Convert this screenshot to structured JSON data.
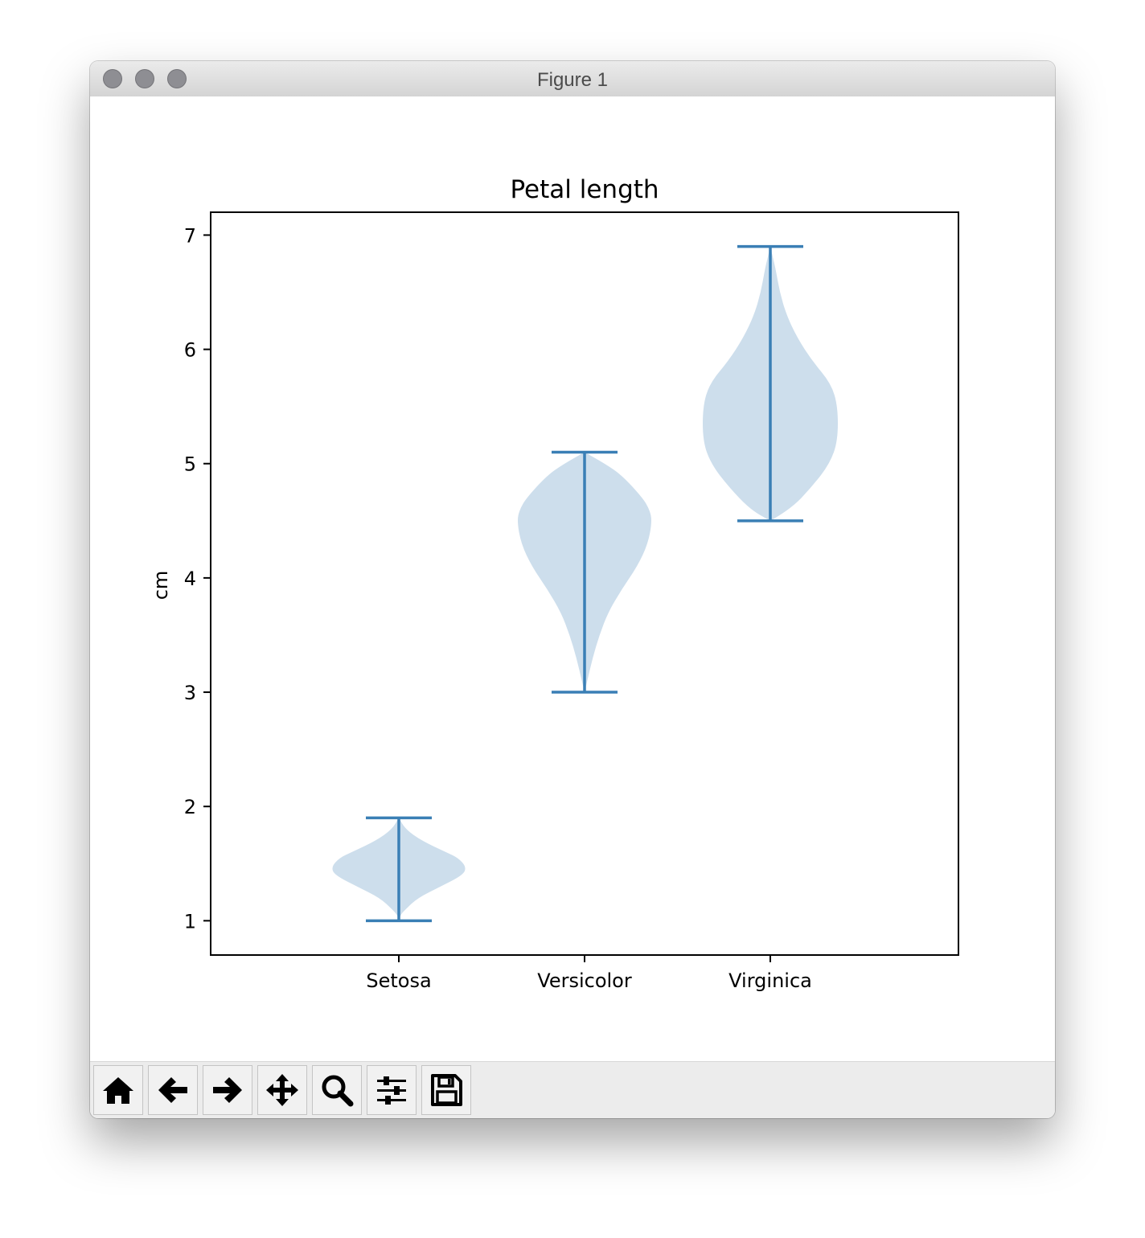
{
  "window": {
    "title": "Figure 1"
  },
  "toolbar": {
    "buttons": [
      {
        "name": "home-button",
        "icon": "home-icon"
      },
      {
        "name": "back-button",
        "icon": "arrow-left-icon"
      },
      {
        "name": "forward-button",
        "icon": "arrow-right-icon"
      },
      {
        "name": "pan-button",
        "icon": "move-icon"
      },
      {
        "name": "zoom-button",
        "icon": "search-icon"
      },
      {
        "name": "configure-subplots-button",
        "icon": "sliders-icon"
      },
      {
        "name": "save-button",
        "icon": "save-icon"
      }
    ]
  },
  "chart_data": {
    "type": "violin",
    "title": "Petal length",
    "ylabel": "cm",
    "xlabel": "",
    "categories": [
      "Setosa",
      "Versicolor",
      "Virginica"
    ],
    "ylim": [
      0.7,
      7.2
    ],
    "yticks": [
      1,
      2,
      3,
      4,
      5,
      6,
      7
    ],
    "grid": false,
    "colors": {
      "body": "#cddeec",
      "lines": "#3a7fb5"
    },
    "series": [
      {
        "min": 1.0,
        "max": 1.9,
        "density": [
          [
            1.0,
            0.0
          ],
          [
            1.05,
            0.02
          ],
          [
            1.1,
            0.1
          ],
          [
            1.2,
            0.28
          ],
          [
            1.3,
            0.62
          ],
          [
            1.4,
            0.95
          ],
          [
            1.47,
            1.0
          ],
          [
            1.55,
            0.88
          ],
          [
            1.6,
            0.7
          ],
          [
            1.7,
            0.34
          ],
          [
            1.8,
            0.1
          ],
          [
            1.9,
            0.0
          ]
        ]
      },
      {
        "min": 3.0,
        "max": 5.1,
        "density": [
          [
            3.0,
            0.0
          ],
          [
            3.1,
            0.04
          ],
          [
            3.3,
            0.12
          ],
          [
            3.5,
            0.22
          ],
          [
            3.7,
            0.35
          ],
          [
            3.9,
            0.55
          ],
          [
            4.1,
            0.78
          ],
          [
            4.3,
            0.94
          ],
          [
            4.5,
            1.0
          ],
          [
            4.6,
            0.96
          ],
          [
            4.7,
            0.86
          ],
          [
            4.9,
            0.55
          ],
          [
            5.0,
            0.3
          ],
          [
            5.1,
            0.0
          ]
        ]
      },
      {
        "min": 4.5,
        "max": 6.9,
        "density": [
          [
            4.5,
            0.0
          ],
          [
            4.6,
            0.3
          ],
          [
            4.8,
            0.62
          ],
          [
            5.0,
            0.88
          ],
          [
            5.2,
            1.0
          ],
          [
            5.5,
            1.0
          ],
          [
            5.7,
            0.9
          ],
          [
            5.9,
            0.62
          ],
          [
            6.1,
            0.4
          ],
          [
            6.3,
            0.24
          ],
          [
            6.5,
            0.14
          ],
          [
            6.7,
            0.08
          ],
          [
            6.8,
            0.04
          ],
          [
            6.9,
            0.0
          ]
        ]
      }
    ]
  }
}
